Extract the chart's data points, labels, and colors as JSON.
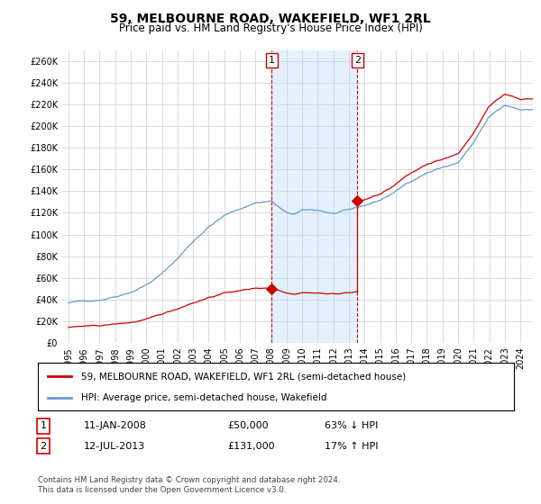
{
  "title": "59, MELBOURNE ROAD, WAKEFIELD, WF1 2RL",
  "subtitle": "Price paid vs. HM Land Registry's House Price Index (HPI)",
  "legend_line1": "59, MELBOURNE ROAD, WAKEFIELD, WF1 2RL (semi-detached house)",
  "legend_line2": "HPI: Average price, semi-detached house, Wakefield",
  "annotation1_date": "11-JAN-2008",
  "annotation1_price": "£50,000",
  "annotation1_hpi": "63% ↓ HPI",
  "annotation2_date": "12-JUL-2013",
  "annotation2_price": "£131,000",
  "annotation2_hpi": "17% ↑ HPI",
  "footer": "Contains HM Land Registry data © Crown copyright and database right 2024.\nThis data is licensed under the Open Government Licence v3.0.",
  "price_color": "#cc0000",
  "hpi_color": "#6699cc",
  "highlight_color_fill": "#ddeeff",
  "vline_color": "#cc0000",
  "ylim": [
    0,
    270000
  ],
  "yticks": [
    0,
    20000,
    40000,
    60000,
    80000,
    100000,
    120000,
    140000,
    160000,
    180000,
    200000,
    220000,
    240000,
    260000
  ],
  "sale1_x": 2008.04,
  "sale1_y": 50000,
  "sale2_x": 2013.54,
  "sale2_y": 131000,
  "xlim_left": 1994.6,
  "xlim_right": 2024.8
}
